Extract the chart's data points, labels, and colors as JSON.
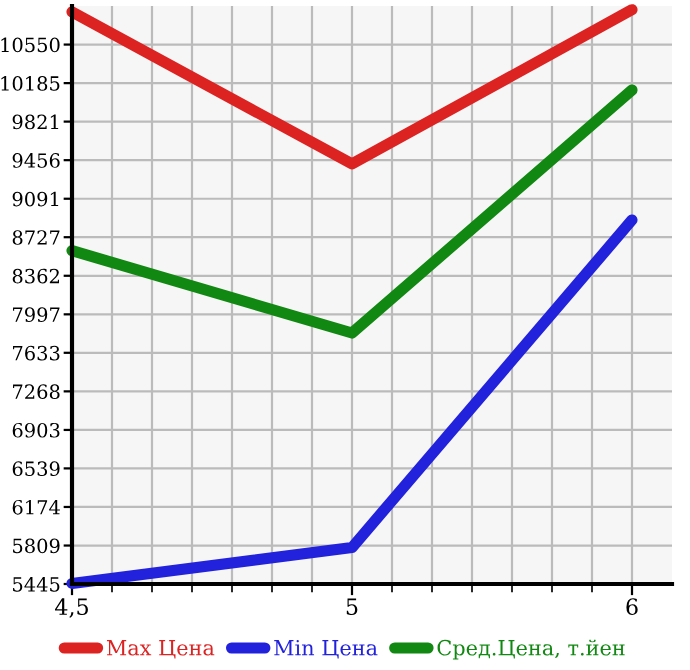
{
  "chart_data": {
    "type": "line",
    "categories": [
      "4,5",
      "5",
      "6"
    ],
    "series": [
      {
        "name": "Max Цена",
        "color": "#dd2222",
        "values": [
          10860,
          9420,
          10880
        ]
      },
      {
        "name": "Min Цена",
        "color": "#2222dd",
        "values": [
          5450,
          5790,
          8890
        ]
      },
      {
        "name": "Сред.Цена, т.йен",
        "color": "#118811",
        "values": [
          8600,
          7820,
          10120
        ]
      }
    ],
    "ylim": [
      5445,
      10915
    ],
    "yticks": [
      5445,
      5809,
      6174,
      6539,
      6903,
      7268,
      7633,
      7997,
      8362,
      8727,
      9091,
      9456,
      9821,
      10185,
      10550
    ],
    "grid": true,
    "legend": "bottom",
    "marker": "none",
    "line_style": "solid"
  }
}
